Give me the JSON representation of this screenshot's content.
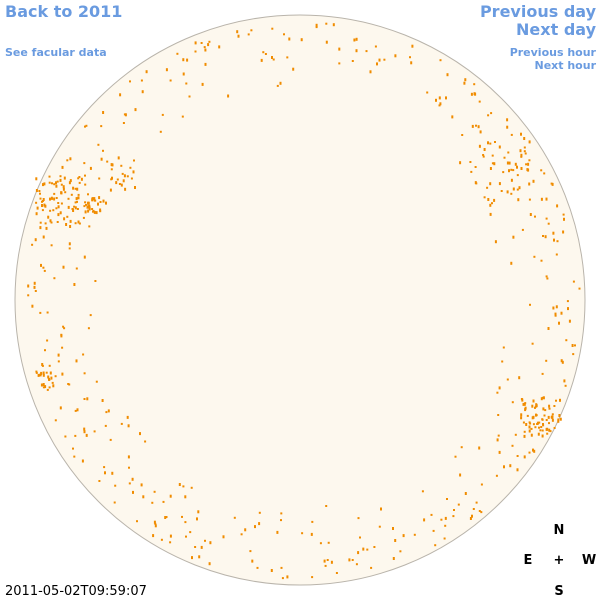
{
  "nav": {
    "back": "Back to 2011",
    "facular": "See facular data",
    "previous_day": "Previous day",
    "next_day": "Next day",
    "previous_hour": "Previous hour",
    "next_hour": "Next hour"
  },
  "timestamp": "2011-05-02T09:59:07",
  "compass": {
    "north": "N",
    "east": "E",
    "center": "+",
    "west": "W",
    "south": "S"
  }
}
